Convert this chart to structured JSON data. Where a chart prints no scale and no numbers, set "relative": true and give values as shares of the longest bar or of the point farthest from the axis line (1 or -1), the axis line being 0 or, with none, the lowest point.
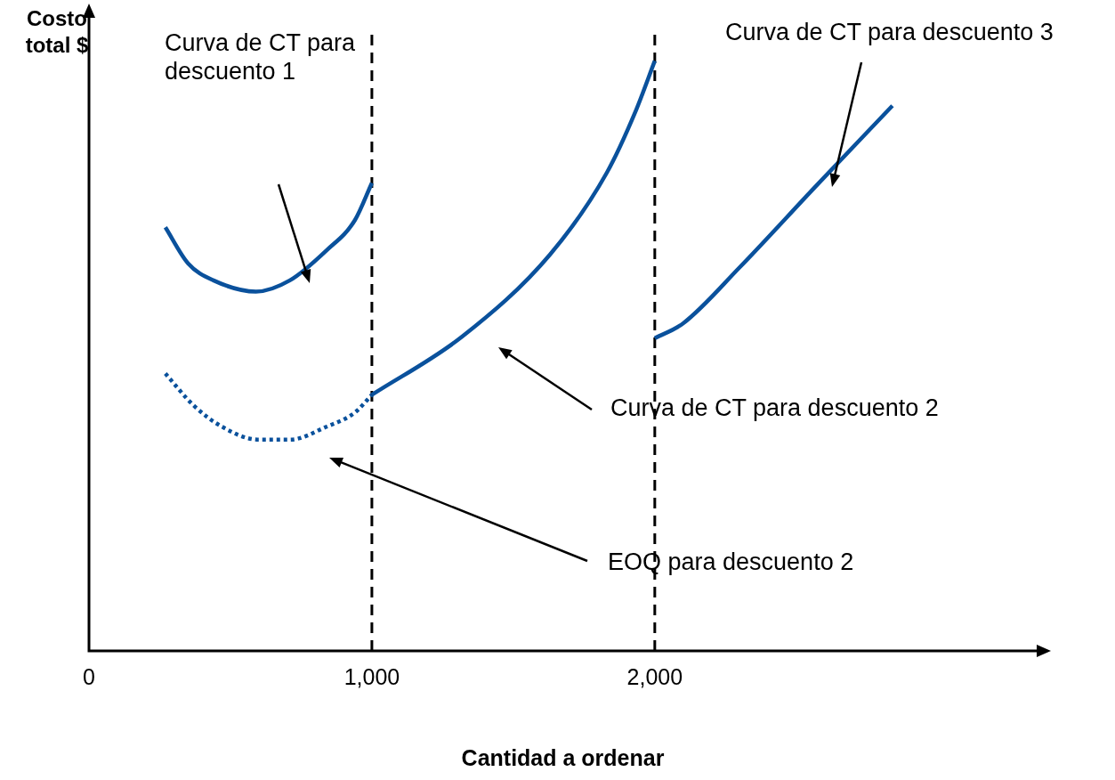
{
  "chart_data": {
    "type": "line",
    "relative": true,
    "xlabel": "Cantidad a ordenar",
    "ylabel": "Costo total $",
    "xlim": [
      0,
      3350
    ],
    "xticks": [
      0,
      {
        "value": 1000,
        "label": "1,000"
      },
      {
        "value": 2000,
        "label": "2,000"
      }
    ],
    "grid": false,
    "legend": false,
    "marker": "none",
    "line_style": "solid",
    "series": [
      {
        "color": "#0a519c",
        "x": [
          270,
          350,
          440,
          590,
          710,
          840,
          940,
          1000
        ],
        "values": [
          0.718,
          0.657,
          0.628,
          0.609,
          0.628,
          0.679,
          0.73,
          0.793
        ]
      },
      {
        "color": "#0a519c",
        "line_style": "dotted",
        "x": [
          270,
          370,
          470,
          600,
          710,
          840,
          940,
          1000
        ],
        "values": [
          0.47,
          0.416,
          0.38,
          0.358,
          0.358,
          0.38,
          0.404,
          0.434
        ]
      },
      {
        "color": "#0a519c",
        "x": [
          1000,
          1320,
          1630,
          1830,
          1930,
          2000
        ],
        "values": [
          0.434,
          0.533,
          0.672,
          0.81,
          0.912,
          1.0
        ]
      },
      {
        "color": "#0a519c",
        "x": [
          2000,
          2100,
          2300,
          2570,
          2840
        ],
        "values": [
          0.53,
          0.555,
          0.65,
          0.788,
          0.924
        ]
      }
    ],
    "ref_lines": [
      {
        "axis": "x",
        "value": 1000,
        "color": "#000000",
        "line_style": "dashed"
      },
      {
        "axis": "x",
        "value": 2000,
        "color": "#000000",
        "line_style": "dashed"
      }
    ],
    "annotations": [
      "Curva de CT para descuento 1",
      "Curva de CT para descuento 3",
      "Curva de CT para descuento 2",
      "EOQ para descuento 2"
    ]
  }
}
